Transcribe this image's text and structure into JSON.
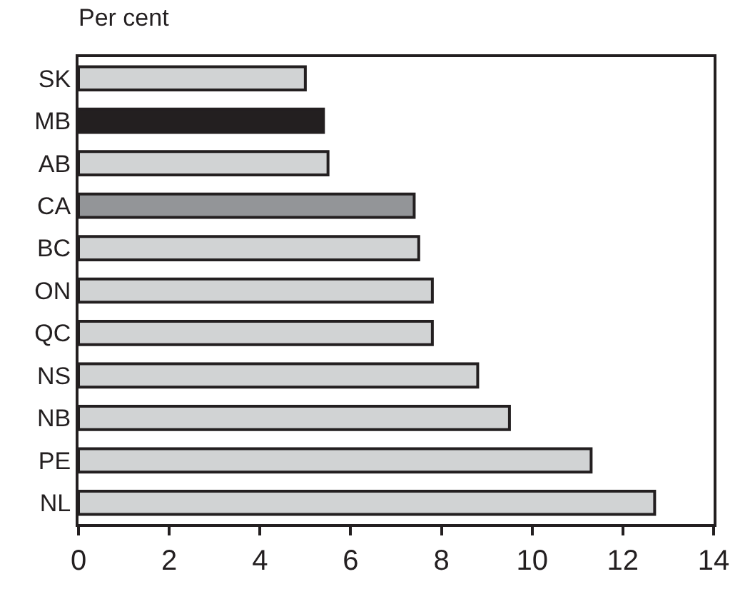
{
  "chart_data": {
    "type": "bar",
    "orientation": "horizontal",
    "title": "Per cent",
    "categories": [
      "SK",
      "MB",
      "AB",
      "CA",
      "BC",
      "ON",
      "QC",
      "NS",
      "NB",
      "PE",
      "NL"
    ],
    "values": [
      5.0,
      5.4,
      5.5,
      7.4,
      7.5,
      7.8,
      7.8,
      8.8,
      9.5,
      11.3,
      12.7
    ],
    "colors": [
      "#d1d3d4",
      "#231f20",
      "#d1d3d4",
      "#939598",
      "#d1d3d4",
      "#d1d3d4",
      "#d1d3d4",
      "#d1d3d4",
      "#d1d3d4",
      "#d1d3d4",
      "#d1d3d4"
    ],
    "xlim": [
      0,
      14
    ],
    "xticks": [
      0,
      2,
      4,
      6,
      8,
      10,
      12,
      14
    ]
  }
}
